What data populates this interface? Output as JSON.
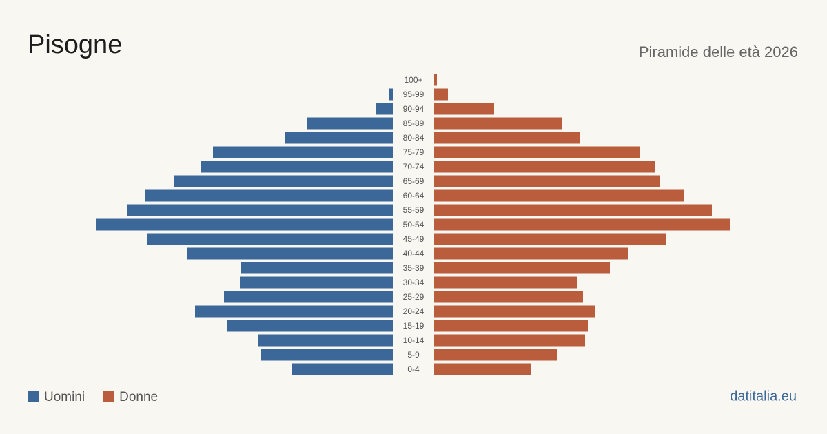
{
  "chart_data": {
    "type": "pyramid",
    "title": "Pisogne",
    "subtitle": "Piramide delle età 2026",
    "source": "datitalia.eu",
    "categories": [
      "100+",
      "95-99",
      "90-94",
      "85-89",
      "80-84",
      "75-79",
      "70-74",
      "65-69",
      "60-64",
      "55-59",
      "50-54",
      "45-49",
      "40-44",
      "35-39",
      "30-34",
      "25-29",
      "20-24",
      "15-19",
      "10-14",
      "5-9",
      "0-4"
    ],
    "series": [
      {
        "name": "Uomini",
        "color": "#3b6899",
        "values": [
          0,
          6,
          25,
          125,
          156,
          261,
          278,
          317,
          360,
          385,
          430,
          356,
          298,
          221,
          222,
          245,
          287,
          241,
          195,
          192,
          146
        ]
      },
      {
        "name": "Donne",
        "color": "#b95d3d",
        "values": [
          4,
          20,
          87,
          185,
          211,
          299,
          321,
          327,
          363,
          403,
          429,
          337,
          281,
          255,
          207,
          216,
          233,
          223,
          219,
          178,
          140
        ]
      }
    ]
  }
}
